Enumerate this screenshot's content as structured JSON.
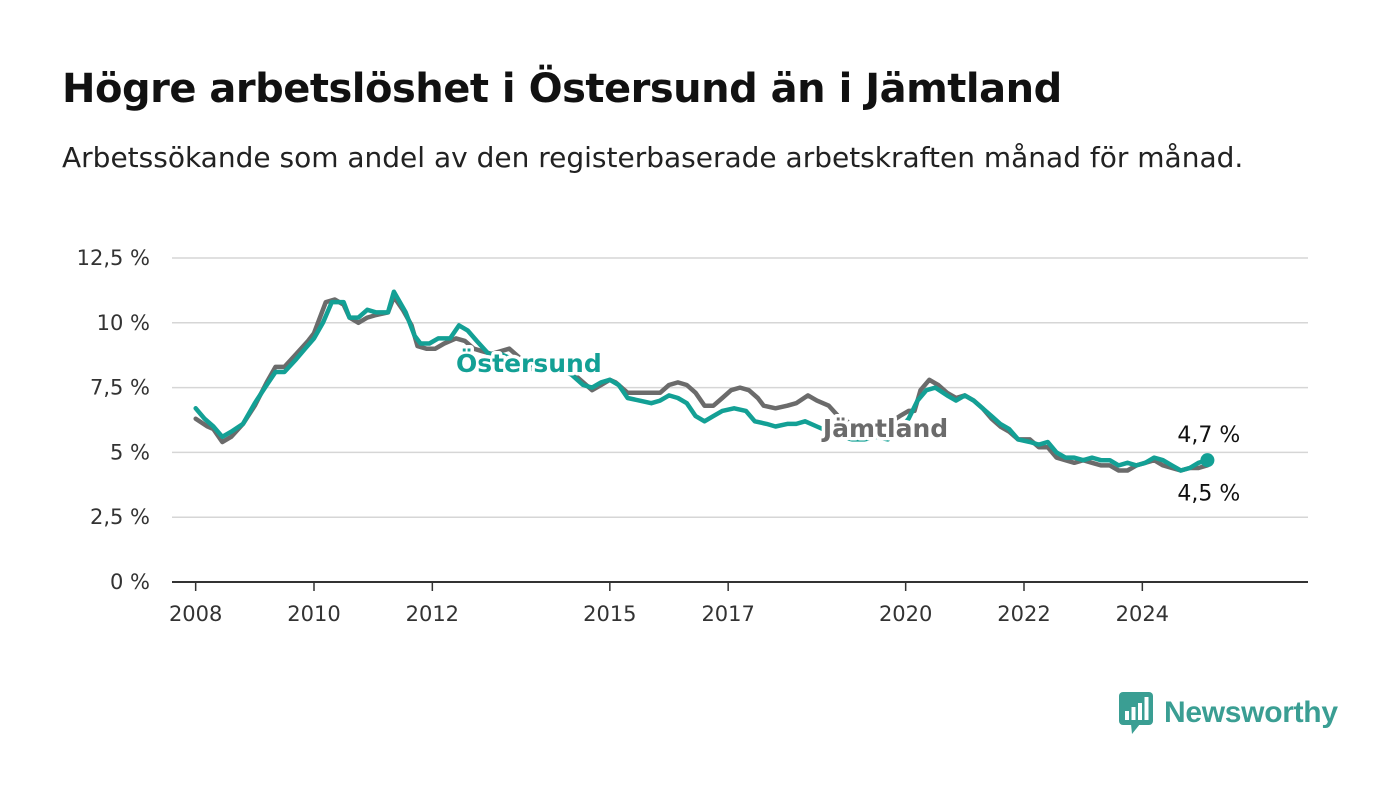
{
  "header": {
    "title": "Högre arbetslöshet i Östersund än i Jämtland",
    "subtitle": "Arbetssökande som andel av den registerbaserade arbetskraften månad för månad."
  },
  "brand": {
    "name": "Newsworthy",
    "color": "#3a9e93",
    "icon": "chart-speech-bubble-icon"
  },
  "chart_data": {
    "type": "line",
    "title": "Högre arbetslöshet i Östersund än i Jämtland",
    "subtitle": "Arbetssökande som andel av den registerbaserade arbetskraften månad för månad.",
    "xlabel": "",
    "ylabel": "",
    "xlim": [
      2007.6,
      2026.8
    ],
    "ylim": [
      0,
      12.5
    ],
    "x_ticks": [
      {
        "value": 2008,
        "label": "2008"
      },
      {
        "value": 2010,
        "label": "2010"
      },
      {
        "value": 2012,
        "label": "2012"
      },
      {
        "value": 2015,
        "label": "2015"
      },
      {
        "value": 2017,
        "label": "2017"
      },
      {
        "value": 2020,
        "label": "2020"
      },
      {
        "value": 2022,
        "label": "2022"
      },
      {
        "value": 2024,
        "label": "2024"
      }
    ],
    "y_ticks": [
      {
        "value": 0,
        "label": "0 %"
      },
      {
        "value": 2.5,
        "label": "2,5 %"
      },
      {
        "value": 5,
        "label": "5 %"
      },
      {
        "value": 7.5,
        "label": "7,5 %"
      },
      {
        "value": 10,
        "label": "10 %"
      },
      {
        "value": 12.5,
        "label": "12,5 %"
      }
    ],
    "grid": true,
    "legend": "direct labels on lines",
    "series": [
      {
        "name": "Jämtland",
        "color": "#6b6b6b",
        "end_label": "4,5 %",
        "points": [
          [
            2008.0,
            6.3
          ],
          [
            2008.2,
            6.0
          ],
          [
            2008.3,
            5.9
          ],
          [
            2008.45,
            5.4
          ],
          [
            2008.6,
            5.6
          ],
          [
            2008.8,
            6.1
          ],
          [
            2009.0,
            6.8
          ],
          [
            2009.2,
            7.7
          ],
          [
            2009.35,
            8.3
          ],
          [
            2009.5,
            8.3
          ],
          [
            2009.7,
            8.8
          ],
          [
            2009.9,
            9.3
          ],
          [
            2010.0,
            9.6
          ],
          [
            2010.2,
            10.8
          ],
          [
            2010.35,
            10.9
          ],
          [
            2010.5,
            10.7
          ],
          [
            2010.6,
            10.2
          ],
          [
            2010.75,
            10.0
          ],
          [
            2010.9,
            10.2
          ],
          [
            2011.05,
            10.3
          ],
          [
            2011.25,
            10.4
          ],
          [
            2011.35,
            11.0
          ],
          [
            2011.5,
            10.5
          ],
          [
            2011.65,
            9.9
          ],
          [
            2011.75,
            9.1
          ],
          [
            2011.9,
            9.0
          ],
          [
            2012.05,
            9.0
          ],
          [
            2012.2,
            9.2
          ],
          [
            2012.4,
            9.4
          ],
          [
            2012.55,
            9.3
          ],
          [
            2012.7,
            9.0
          ],
          [
            2012.85,
            8.9
          ],
          [
            2013.0,
            8.8
          ],
          [
            2013.15,
            8.9
          ],
          [
            2013.3,
            9.0
          ],
          [
            2013.5,
            8.6
          ],
          [
            2013.7,
            8.2
          ],
          [
            2013.9,
            8.3
          ],
          [
            2014.1,
            8.4
          ],
          [
            2014.3,
            8.2
          ],
          [
            2014.5,
            7.8
          ],
          [
            2014.7,
            7.4
          ],
          [
            2014.85,
            7.6
          ],
          [
            2015.0,
            7.8
          ],
          [
            2015.1,
            7.7
          ],
          [
            2015.3,
            7.3
          ],
          [
            2015.5,
            7.3
          ],
          [
            2015.7,
            7.3
          ],
          [
            2015.85,
            7.3
          ],
          [
            2016.0,
            7.6
          ],
          [
            2016.15,
            7.7
          ],
          [
            2016.3,
            7.6
          ],
          [
            2016.45,
            7.3
          ],
          [
            2016.6,
            6.8
          ],
          [
            2016.75,
            6.8
          ],
          [
            2016.9,
            7.1
          ],
          [
            2017.05,
            7.4
          ],
          [
            2017.2,
            7.5
          ],
          [
            2017.35,
            7.4
          ],
          [
            2017.5,
            7.1
          ],
          [
            2017.6,
            6.8
          ],
          [
            2017.8,
            6.7
          ],
          [
            2018.0,
            6.8
          ],
          [
            2018.15,
            6.9
          ],
          [
            2018.35,
            7.2
          ],
          [
            2018.5,
            7.0
          ],
          [
            2018.7,
            6.8
          ],
          [
            2018.9,
            6.3
          ],
          [
            2019.1,
            6.1
          ],
          [
            2019.3,
            6.0
          ],
          [
            2019.5,
            6.0
          ],
          [
            2019.7,
            6.1
          ],
          [
            2019.9,
            6.4
          ],
          [
            2020.05,
            6.6
          ],
          [
            2020.15,
            6.6
          ],
          [
            2020.25,
            7.4
          ],
          [
            2020.4,
            7.8
          ],
          [
            2020.55,
            7.6
          ],
          [
            2020.7,
            7.3
          ],
          [
            2020.85,
            7.1
          ],
          [
            2021.0,
            7.2
          ],
          [
            2021.15,
            7.0
          ],
          [
            2021.3,
            6.7
          ],
          [
            2021.45,
            6.3
          ],
          [
            2021.6,
            6.0
          ],
          [
            2021.75,
            5.8
          ],
          [
            2021.9,
            5.5
          ],
          [
            2022.1,
            5.5
          ],
          [
            2022.25,
            5.2
          ],
          [
            2022.4,
            5.2
          ],
          [
            2022.55,
            4.8
          ],
          [
            2022.7,
            4.7
          ],
          [
            2022.85,
            4.6
          ],
          [
            2023.0,
            4.7
          ],
          [
            2023.15,
            4.6
          ],
          [
            2023.3,
            4.5
          ],
          [
            2023.45,
            4.5
          ],
          [
            2023.6,
            4.3
          ],
          [
            2023.75,
            4.3
          ],
          [
            2023.9,
            4.5
          ],
          [
            2024.05,
            4.6
          ],
          [
            2024.2,
            4.7
          ],
          [
            2024.35,
            4.5
          ],
          [
            2024.5,
            4.4
          ],
          [
            2024.65,
            4.3
          ],
          [
            2024.8,
            4.4
          ],
          [
            2024.95,
            4.4
          ],
          [
            2025.1,
            4.5
          ]
        ]
      },
      {
        "name": "Östersund",
        "color": "#13a095",
        "end_label": "4,7 %",
        "points": [
          [
            2008.0,
            6.7
          ],
          [
            2008.15,
            6.3
          ],
          [
            2008.3,
            6.0
          ],
          [
            2008.45,
            5.6
          ],
          [
            2008.6,
            5.8
          ],
          [
            2008.8,
            6.1
          ],
          [
            2009.0,
            6.9
          ],
          [
            2009.2,
            7.6
          ],
          [
            2009.35,
            8.1
          ],
          [
            2009.5,
            8.1
          ],
          [
            2009.7,
            8.6
          ],
          [
            2009.85,
            9.0
          ],
          [
            2010.0,
            9.4
          ],
          [
            2010.15,
            10.0
          ],
          [
            2010.3,
            10.8
          ],
          [
            2010.5,
            10.8
          ],
          [
            2010.6,
            10.2
          ],
          [
            2010.75,
            10.2
          ],
          [
            2010.9,
            10.5
          ],
          [
            2011.05,
            10.4
          ],
          [
            2011.25,
            10.4
          ],
          [
            2011.35,
            11.2
          ],
          [
            2011.55,
            10.4
          ],
          [
            2011.7,
            9.5
          ],
          [
            2011.8,
            9.2
          ],
          [
            2011.95,
            9.2
          ],
          [
            2012.1,
            9.4
          ],
          [
            2012.3,
            9.4
          ],
          [
            2012.45,
            9.9
          ],
          [
            2012.6,
            9.7
          ],
          [
            2012.75,
            9.3
          ],
          [
            2012.95,
            8.8
          ],
          [
            2013.15,
            8.8
          ],
          [
            2013.35,
            8.6
          ],
          [
            2013.55,
            8.2
          ],
          [
            2013.75,
            8.3
          ],
          [
            2013.95,
            8.4
          ],
          [
            2014.15,
            8.2
          ],
          [
            2014.35,
            8.0
          ],
          [
            2014.55,
            7.6
          ],
          [
            2014.7,
            7.5
          ],
          [
            2014.85,
            7.7
          ],
          [
            2015.0,
            7.8
          ],
          [
            2015.15,
            7.6
          ],
          [
            2015.3,
            7.1
          ],
          [
            2015.5,
            7.0
          ],
          [
            2015.7,
            6.9
          ],
          [
            2015.85,
            7.0
          ],
          [
            2016.0,
            7.2
          ],
          [
            2016.15,
            7.1
          ],
          [
            2016.3,
            6.9
          ],
          [
            2016.45,
            6.4
          ],
          [
            2016.6,
            6.2
          ],
          [
            2016.75,
            6.4
          ],
          [
            2016.9,
            6.6
          ],
          [
            2017.1,
            6.7
          ],
          [
            2017.3,
            6.6
          ],
          [
            2017.45,
            6.2
          ],
          [
            2017.65,
            6.1
          ],
          [
            2017.8,
            6.0
          ],
          [
            2018.0,
            6.1
          ],
          [
            2018.15,
            6.1
          ],
          [
            2018.3,
            6.2
          ],
          [
            2018.5,
            6.0
          ],
          [
            2018.7,
            5.8
          ],
          [
            2018.9,
            5.6
          ],
          [
            2019.1,
            5.5
          ],
          [
            2019.3,
            5.5
          ],
          [
            2019.5,
            5.6
          ],
          [
            2019.7,
            5.5
          ],
          [
            2019.9,
            5.9
          ],
          [
            2020.05,
            6.3
          ],
          [
            2020.2,
            7.0
          ],
          [
            2020.35,
            7.4
          ],
          [
            2020.5,
            7.5
          ],
          [
            2020.7,
            7.2
          ],
          [
            2020.85,
            7.0
          ],
          [
            2021.0,
            7.2
          ],
          [
            2021.15,
            7.0
          ],
          [
            2021.3,
            6.7
          ],
          [
            2021.45,
            6.4
          ],
          [
            2021.6,
            6.1
          ],
          [
            2021.75,
            5.9
          ],
          [
            2021.9,
            5.5
          ],
          [
            2022.1,
            5.4
          ],
          [
            2022.25,
            5.3
          ],
          [
            2022.4,
            5.4
          ],
          [
            2022.55,
            5.0
          ],
          [
            2022.7,
            4.8
          ],
          [
            2022.85,
            4.8
          ],
          [
            2023.0,
            4.7
          ],
          [
            2023.15,
            4.8
          ],
          [
            2023.3,
            4.7
          ],
          [
            2023.45,
            4.7
          ],
          [
            2023.6,
            4.5
          ],
          [
            2023.75,
            4.6
          ],
          [
            2023.9,
            4.5
          ],
          [
            2024.05,
            4.6
          ],
          [
            2024.2,
            4.8
          ],
          [
            2024.35,
            4.7
          ],
          [
            2024.5,
            4.5
          ],
          [
            2024.65,
            4.3
          ],
          [
            2024.8,
            4.4
          ],
          [
            2024.95,
            4.6
          ],
          [
            2025.1,
            4.7
          ]
        ]
      }
    ]
  }
}
